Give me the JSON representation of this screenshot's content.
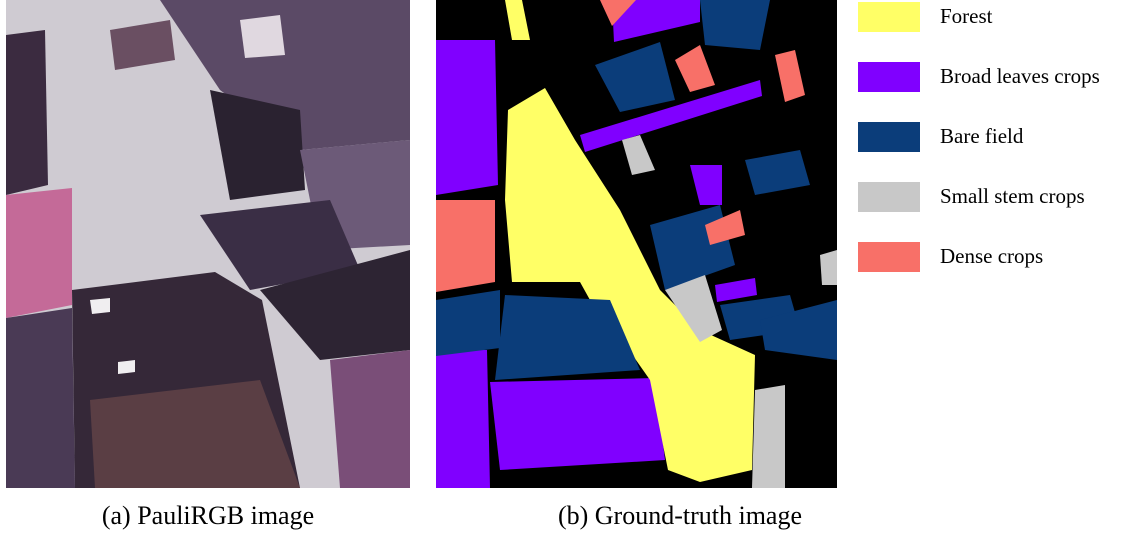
{
  "figure": {
    "panels": [
      {
        "caption": "(a) PauliRGB image"
      },
      {
        "caption": "(b) Ground-truth image"
      }
    ],
    "legend": [
      {
        "label": "Forest",
        "color": "#ffff66"
      },
      {
        "label": "Broad leaves crops",
        "color": "#8000ff"
      },
      {
        "label": "Bare field",
        "color": "#0b3d7a"
      },
      {
        "label": "Small stem crops",
        "color": "#c8c8c8"
      },
      {
        "label": "Dense crops",
        "color": "#f87068"
      }
    ]
  }
}
